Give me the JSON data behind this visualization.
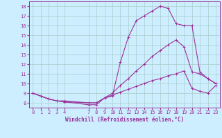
{
  "xlabel": "Windchill (Refroidissement éolien,°C)",
  "bg_color": "#cceeff",
  "grid_color": "#aacccc",
  "line_color": "#993399",
  "xlim": [
    -0.5,
    23.5
  ],
  "ylim": [
    7.5,
    18.5
  ],
  "xticks": [
    0,
    1,
    2,
    3,
    4,
    7,
    8,
    9,
    10,
    11,
    12,
    13,
    14,
    15,
    16,
    17,
    18,
    19,
    20,
    21,
    22,
    23
  ],
  "yticks": [
    8,
    9,
    10,
    11,
    12,
    13,
    14,
    15,
    16,
    17,
    18
  ],
  "line1_x": [
    0,
    1,
    2,
    3,
    4,
    7,
    8,
    9,
    10,
    11,
    12,
    13,
    14,
    15,
    16,
    17,
    18,
    19,
    20,
    21,
    22,
    23
  ],
  "line1_y": [
    9.0,
    8.7,
    8.4,
    8.2,
    8.1,
    7.8,
    7.8,
    8.5,
    8.7,
    12.2,
    14.8,
    16.5,
    17.0,
    17.5,
    18.0,
    17.8,
    16.2,
    16.0,
    16.0,
    11.2,
    10.5,
    10.0
  ],
  "line2_x": [
    0,
    1,
    2,
    3,
    4,
    7,
    8,
    9,
    10,
    11,
    12,
    13,
    14,
    15,
    16,
    17,
    18,
    19,
    20,
    21,
    22,
    23
  ],
  "line2_y": [
    9.0,
    8.7,
    8.4,
    8.2,
    8.1,
    8.0,
    8.0,
    8.5,
    9.0,
    9.8,
    10.5,
    11.3,
    12.0,
    12.8,
    13.4,
    14.0,
    14.5,
    13.8,
    11.2,
    11.0,
    10.5,
    10.0
  ],
  "line3_x": [
    0,
    1,
    2,
    3,
    4,
    7,
    8,
    9,
    10,
    11,
    12,
    13,
    14,
    15,
    16,
    17,
    18,
    19,
    20,
    21,
    22,
    23
  ],
  "line3_y": [
    9.0,
    8.7,
    8.4,
    8.2,
    8.2,
    8.0,
    8.0,
    8.5,
    8.8,
    9.1,
    9.4,
    9.7,
    10.0,
    10.3,
    10.5,
    10.8,
    11.0,
    11.3,
    9.5,
    9.2,
    9.0,
    9.8
  ]
}
